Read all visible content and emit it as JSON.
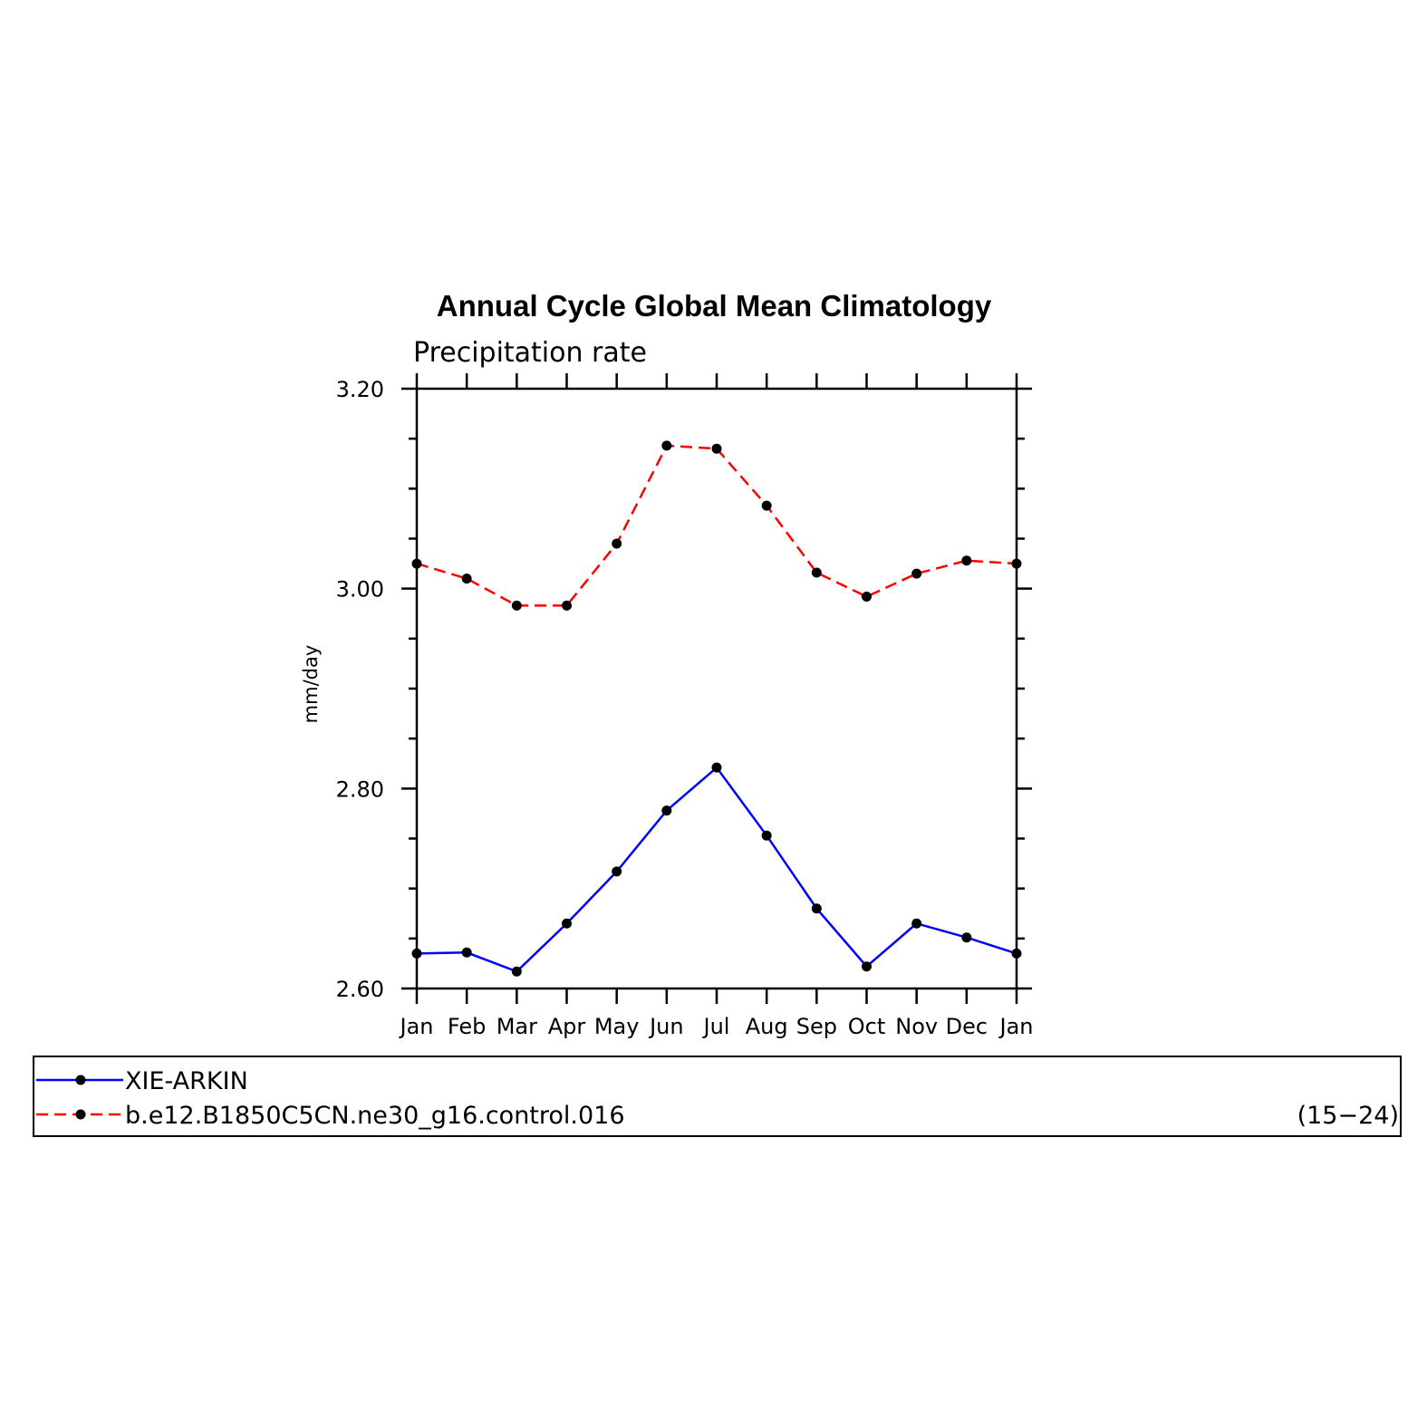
{
  "chart_data": {
    "type": "line",
    "title": "Annual Cycle Global Mean Climatology",
    "subtitle": "Precipitation rate",
    "xlabel": "",
    "ylabel": "mm/day",
    "categories": [
      "Jan",
      "Feb",
      "Mar",
      "Apr",
      "May",
      "Jun",
      "Jul",
      "Aug",
      "Sep",
      "Oct",
      "Nov",
      "Dec",
      "Jan"
    ],
    "ylim": [
      2.6,
      3.2
    ],
    "yticks": [
      "2.60",
      "2.80",
      "3.00",
      "3.20"
    ],
    "grid": false,
    "legend_placement": "bottom",
    "series": [
      {
        "name": "XIE-ARKIN",
        "color": "#0000ff",
        "dash": "solid",
        "values": [
          2.635,
          2.636,
          2.617,
          2.665,
          2.717,
          2.778,
          2.821,
          2.753,
          2.68,
          2.622,
          2.665,
          2.651,
          2.635
        ]
      },
      {
        "name": "b.e12.B1850C5CN.ne30_g16.control.016",
        "color": "#ff0000",
        "dash": "dashed",
        "values": [
          3.025,
          3.01,
          2.983,
          2.983,
          3.045,
          3.143,
          3.14,
          3.083,
          3.016,
          2.992,
          3.015,
          3.028,
          3.025
        ]
      }
    ],
    "annotation": "(15−24)"
  }
}
